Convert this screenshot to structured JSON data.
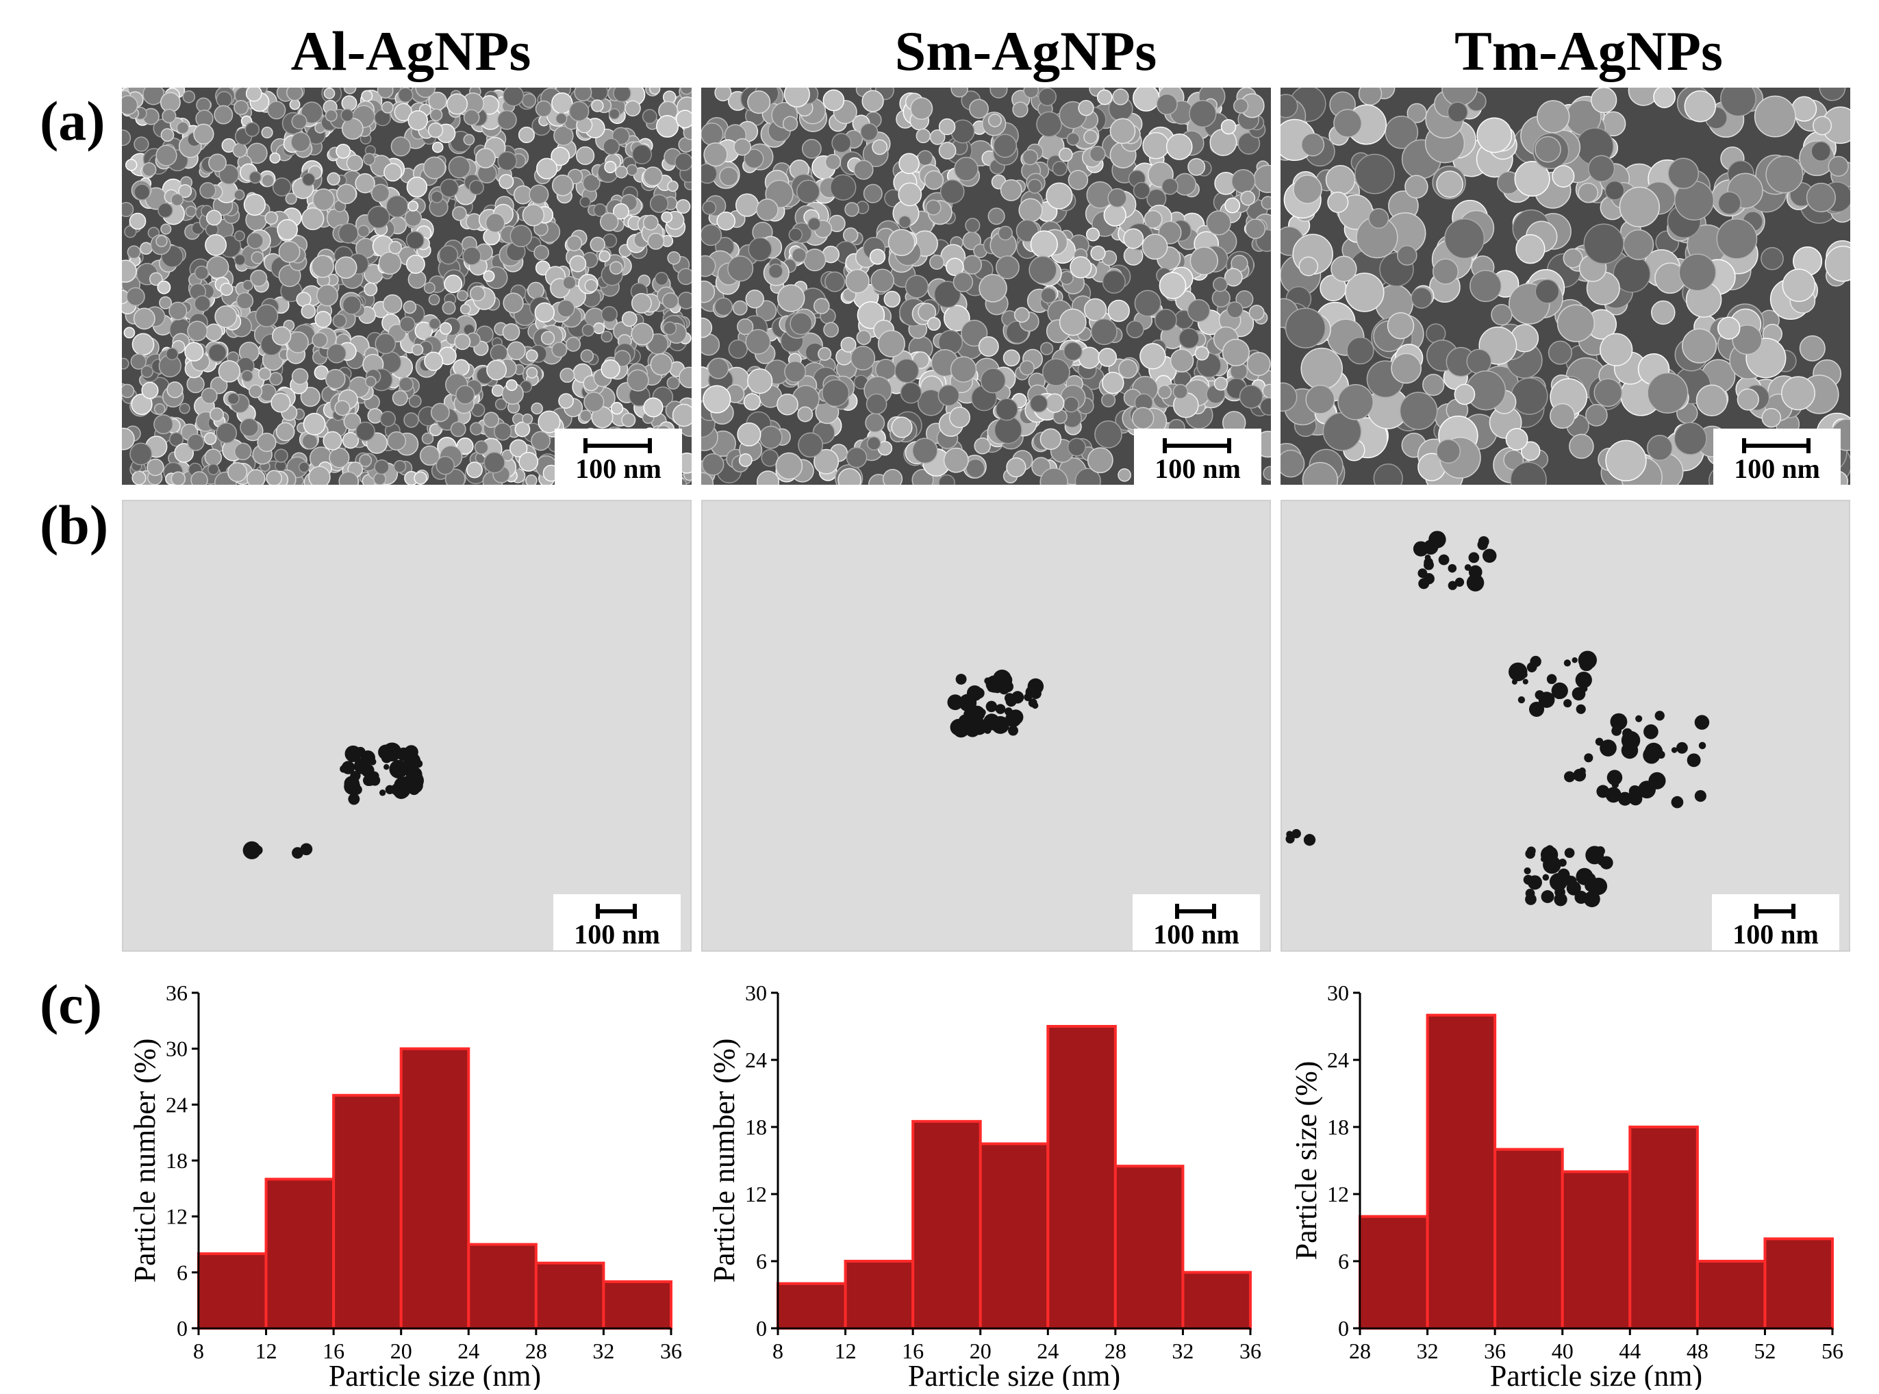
{
  "columns": [
    {
      "title": "Al-AgNPs"
    },
    {
      "title": "Sm-AgNPs"
    },
    {
      "title": "Tm-AgNPs"
    }
  ],
  "rows": {
    "a": "(a)",
    "b": "(b)",
    "c": "(c)"
  },
  "scale_bar_label": "100 nm",
  "colors": {
    "bar_fill": "#a3181a",
    "bar_edge": "#ff2a2a",
    "sem_bg": "#4a4a4a",
    "tem_bg": "#dcdcdc"
  },
  "chart_data": [
    {
      "type": "bar",
      "title": "",
      "xlabel": "Particle size (nm)",
      "ylabel": "Particle number (%)",
      "bin_edges": [
        8,
        12,
        16,
        20,
        24,
        28,
        32,
        36
      ],
      "values": [
        8,
        16,
        25,
        30,
        9,
        7,
        5
      ],
      "ylim": [
        0,
        36
      ],
      "yticks": [
        0,
        6,
        12,
        18,
        24,
        30,
        36
      ],
      "xticks": [
        8,
        12,
        16,
        20,
        24,
        28,
        32,
        36
      ],
      "grid": false
    },
    {
      "type": "bar",
      "title": "",
      "xlabel": "Particle size (nm)",
      "ylabel": "Particle number (%)",
      "bin_edges": [
        8,
        12,
        16,
        20,
        24,
        28,
        32,
        36
      ],
      "values": [
        4,
        6,
        18.5,
        16.5,
        27,
        14.5,
        5
      ],
      "ylim": [
        0,
        30
      ],
      "yticks": [
        0,
        6,
        12,
        18,
        24,
        30
      ],
      "xticks": [
        8,
        12,
        16,
        20,
        24,
        28,
        32,
        36
      ],
      "grid": false
    },
    {
      "type": "bar",
      "title": "",
      "xlabel": "Particle size (nm)",
      "ylabel": "Particle size (%)",
      "bin_edges": [
        28,
        32,
        36,
        40,
        44,
        48,
        52,
        56
      ],
      "values": [
        10,
        28,
        16,
        14,
        18,
        6,
        8
      ],
      "ylim": [
        0,
        30
      ],
      "yticks": [
        0,
        6,
        12,
        18,
        24,
        30
      ],
      "xticks": [
        28,
        32,
        36,
        40,
        44,
        48,
        52,
        56
      ],
      "grid": false
    }
  ]
}
